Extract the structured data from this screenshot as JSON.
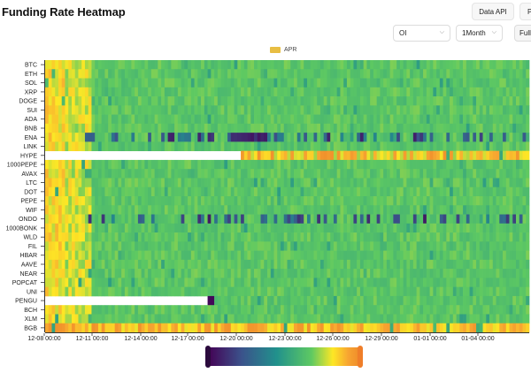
{
  "header": {
    "title": "Funding Rate Heatmap",
    "data_api_label": "Data API",
    "p_button_label": "P",
    "metric_select": "OI",
    "period_select": "1Month",
    "full_button_label": "Full"
  },
  "legend": {
    "label": "APR",
    "color": "#e8be43"
  },
  "chart_data": {
    "type": "heatmap",
    "title": "Funding Rate Heatmap",
    "series_name": "APR",
    "y_categories": [
      "BTC",
      "ETH",
      "SOL",
      "XRP",
      "DOGE",
      "SUI",
      "ADA",
      "BNB",
      "ENA",
      "LINK",
      "HYPE",
      "1000PEPE",
      "AVAX",
      "LTC",
      "DOT",
      "PEPE",
      "WIF",
      "ONDO",
      "1000BONK",
      "WLD",
      "FIL",
      "HBAR",
      "AAVE",
      "NEAR",
      "POPCAT",
      "UNI",
      "PENGU",
      "BCH",
      "XLM",
      "BGB"
    ],
    "x_tick_labels": [
      "12-08 00:00",
      "12-11 00:00",
      "12-14 00:00",
      "12-17 00:00",
      "12-20 00:00",
      "12-23 00:00",
      "12-26 00:00",
      "12-29 00:00",
      "01-01 00:00",
      "01-04 00:00"
    ],
    "colorscale": [
      "#440154",
      "#3b528b",
      "#21918c",
      "#5ec962",
      "#fde725",
      "#f7a531",
      "#ef8a2a"
    ],
    "missing_data": [
      {
        "symbol": "HYPE",
        "until": "12-20 00:00"
      },
      {
        "symbol": "PENGU",
        "until": "12-18 00:00"
      }
    ],
    "grid": false
  }
}
